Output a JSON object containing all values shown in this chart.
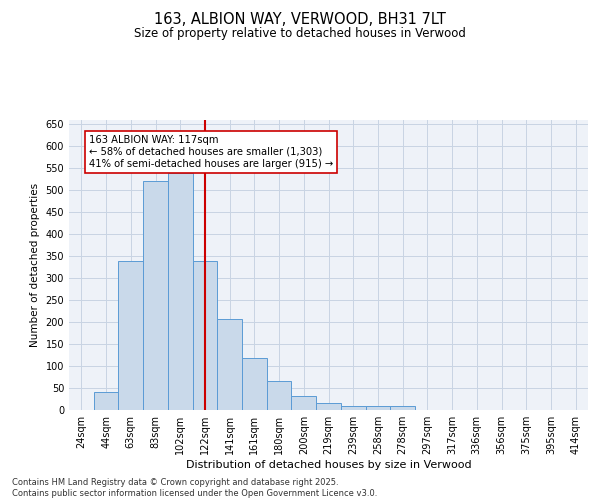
{
  "title_line1": "163, ALBION WAY, VERWOOD, BH31 7LT",
  "title_line2": "Size of property relative to detached houses in Verwood",
  "xlabel": "Distribution of detached houses by size in Verwood",
  "ylabel": "Number of detached properties",
  "bar_color": "#c9d9ea",
  "bar_edge_color": "#5b9bd5",
  "categories": [
    "24sqm",
    "44sqm",
    "63sqm",
    "83sqm",
    "102sqm",
    "122sqm",
    "141sqm",
    "161sqm",
    "180sqm",
    "200sqm",
    "219sqm",
    "239sqm",
    "258sqm",
    "278sqm",
    "297sqm",
    "317sqm",
    "336sqm",
    "356sqm",
    "375sqm",
    "395sqm",
    "414sqm"
  ],
  "values": [
    0,
    40,
    338,
    522,
    540,
    340,
    207,
    118,
    65,
    33,
    16,
    10,
    10,
    10,
    0,
    0,
    0,
    0,
    0,
    0,
    0
  ],
  "vline_x_index": 5,
  "vline_color": "#cc0000",
  "annotation_text": "163 ALBION WAY: 117sqm\n← 58% of detached houses are smaller (1,303)\n41% of semi-detached houses are larger (915) →",
  "ylim": [
    0,
    660
  ],
  "yticks": [
    0,
    50,
    100,
    150,
    200,
    250,
    300,
    350,
    400,
    450,
    500,
    550,
    600,
    650
  ],
  "grid_color": "#c8d4e3",
  "bg_color": "#eef2f8",
  "footer_text": "Contains HM Land Registry data © Crown copyright and database right 2025.\nContains public sector information licensed under the Open Government Licence v3.0.",
  "font_family": "DejaVu Sans",
  "title1_fontsize": 10.5,
  "title2_fontsize": 8.5,
  "xlabel_fontsize": 8.0,
  "ylabel_fontsize": 7.5,
  "tick_fontsize": 7.0,
  "annotation_fontsize": 7.2,
  "footer_fontsize": 6.0
}
